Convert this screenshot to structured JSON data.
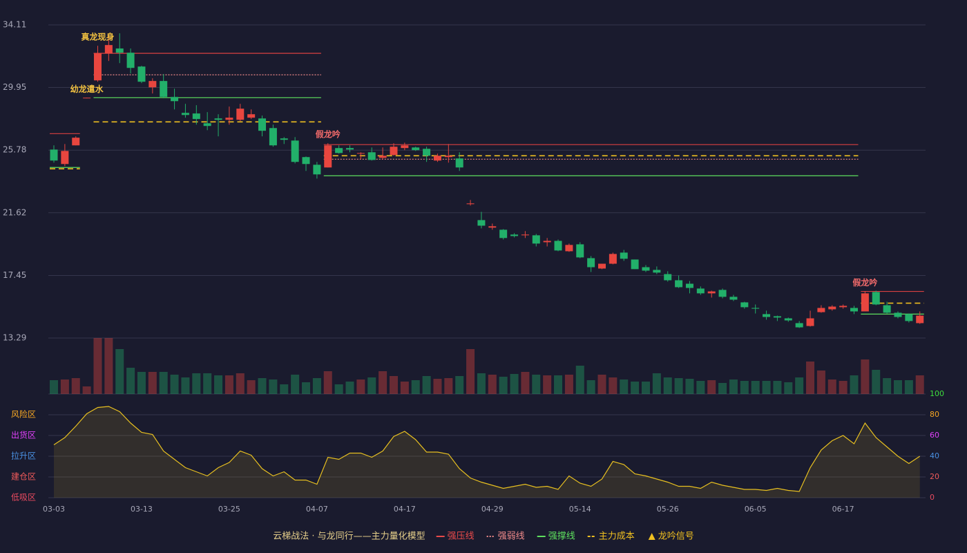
{
  "chart_data": {
    "type": "candlestick",
    "categories": [
      "03-03",
      null,
      null,
      null,
      null,
      null,
      null,
      null,
      "03-13",
      null,
      null,
      null,
      null,
      null,
      null,
      null,
      "03-25",
      null,
      null,
      null,
      null,
      null,
      null,
      null,
      "04-07",
      null,
      null,
      null,
      null,
      null,
      null,
      null,
      "04-17",
      null,
      null,
      null,
      null,
      null,
      null,
      null,
      "04-29",
      null,
      null,
      null,
      null,
      null,
      null,
      null,
      "05-14",
      null,
      null,
      null,
      null,
      null,
      null,
      null,
      "05-26",
      null,
      null,
      null,
      null,
      null,
      null,
      null,
      "06-05",
      null,
      null,
      null,
      null,
      null,
      null,
      null,
      "06-17",
      null,
      null,
      null,
      null,
      null,
      null,
      null
    ],
    "open": [
      25.82,
      24.86,
      26.1,
      29.23,
      30.42,
      32.22,
      32.54,
      32.26,
      31.34,
      29.96,
      30.38,
      29.32,
      28.26,
      28.22,
      27.57,
      27.89,
      27.8,
      27.8,
      27.94,
      27.89,
      27.25,
      26.56,
      26.42,
      25.32,
      24.81,
      24.63,
      25.92,
      25.92,
      25.55,
      25.64,
      25.27,
      25.46,
      25.92,
      25.96,
      25.87,
      25.09,
      25.32,
      25.23,
      22.19,
      21.13,
      20.63,
      20.49,
      20.17,
      20.12,
      20.12,
      19.66,
      19.75,
      19.06,
      19.52,
      18.6,
      17.91,
      18.23,
      18.97,
      18.51,
      18.0,
      17.82,
      17.54,
      17.13,
      16.9,
      16.58,
      16.26,
      16.49,
      16.03,
      15.66,
      15.29,
      14.88,
      14.74,
      14.6,
      14.28,
      14.09,
      15.01,
      15.2,
      15.34,
      15.29,
      15.06,
      16.35,
      15.47,
      14.97,
      14.88,
      14.28
    ],
    "high": [
      26.1,
      26.19,
      26.7,
      29.27,
      32.72,
      33.46,
      33.55,
      32.54,
      31.39,
      30.56,
      30.84,
      29.87,
      28.86,
      28.77,
      28.31,
      28.17,
      28.68,
      28.86,
      28.49,
      28.08,
      27.48,
      26.65,
      26.65,
      25.36,
      25.0,
      26.24,
      26.1,
      26.1,
      25.64,
      25.96,
      25.96,
      26.24,
      26.28,
      26.01,
      26.01,
      25.55,
      26.19,
      25.64,
      22.47,
      21.68,
      20.9,
      20.53,
      20.26,
      20.4,
      20.21,
      19.94,
      19.84,
      19.57,
      19.66,
      18.74,
      18.23,
      18.97,
      19.15,
      18.51,
      18.14,
      18.05,
      17.73,
      17.45,
      17.08,
      16.72,
      16.44,
      16.58,
      16.16,
      15.7,
      15.52,
      15.11,
      14.78,
      14.65,
      14.42,
      15.11,
      15.47,
      15.47,
      15.52,
      15.43,
      16.39,
      16.44,
      15.7,
      15.06,
      14.92,
      15.06
    ],
    "low": [
      24.95,
      24.72,
      26.1,
      29.23,
      30.33,
      31.71,
      31.57,
      30.88,
      30.24,
      29.55,
      29.23,
      28.49,
      27.94,
      27.48,
      27.11,
      26.7,
      27.48,
      27.71,
      27.85,
      26.7,
      26.01,
      26.19,
      24.9,
      24.4,
      23.89,
      24.63,
      25.55,
      25.64,
      25.18,
      25.09,
      25.18,
      25.41,
      25.78,
      25.73,
      25.0,
      25.0,
      24.95,
      24.4,
      22.1,
      20.58,
      20.49,
      19.84,
      19.98,
      19.94,
      19.38,
      19.38,
      19.06,
      19.02,
      18.6,
      17.68,
      17.87,
      18.19,
      18.42,
      17.87,
      17.68,
      17.54,
      17.04,
      16.62,
      16.26,
      16.16,
      15.98,
      15.93,
      15.75,
      15.24,
      14.92,
      14.51,
      14.42,
      14.37,
      13.96,
      14.05,
      14.97,
      15.11,
      15.24,
      14.88,
      15.06,
      15.47,
      14.92,
      14.6,
      14.32,
      14.23
    ],
    "close": [
      25.09,
      25.73,
      26.61,
      29.27,
      32.22,
      32.77,
      32.26,
      31.25,
      30.33,
      30.38,
      29.32,
      29.04,
      28.12,
      27.85,
      27.39,
      27.8,
      27.94,
      28.54,
      28.17,
      27.07,
      26.1,
      26.47,
      25.0,
      24.86,
      24.17,
      26.1,
      25.59,
      25.82,
      25.59,
      25.13,
      25.41,
      26.01,
      26.1,
      25.78,
      25.41,
      25.41,
      25.41,
      24.63,
      22.24,
      20.76,
      20.72,
      19.94,
      20.07,
      20.17,
      19.57,
      19.75,
      19.11,
      19.48,
      18.65,
      18.0,
      18.23,
      18.88,
      18.56,
      17.87,
      17.77,
      17.64,
      17.13,
      16.67,
      16.62,
      16.26,
      16.39,
      16.03,
      15.84,
      15.34,
      15.24,
      14.69,
      14.65,
      14.46,
      14.0,
      14.6,
      15.29,
      15.38,
      15.43,
      15.06,
      16.26,
      15.52,
      14.97,
      14.69,
      14.42,
      14.78
    ],
    "up_color": "#e8463f",
    "down_color": "#22b06a",
    "volume": [
      20,
      21,
      23,
      11,
      81,
      81,
      65,
      38,
      32,
      32,
      32,
      28,
      24,
      30,
      30,
      27,
      27,
      30,
      20,
      23,
      21,
      14,
      28,
      17,
      23,
      33,
      14,
      18,
      21,
      24,
      33,
      26,
      18,
      20,
      26,
      22,
      23,
      26,
      65,
      30,
      28,
      25,
      29,
      32,
      28,
      27,
      27,
      28,
      41,
      20,
      28,
      24,
      21,
      18,
      18,
      30,
      24,
      23,
      22,
      19,
      20,
      16,
      21,
      19,
      19,
      19,
      19,
      17,
      24,
      47,
      34,
      21,
      19,
      27,
      50,
      35,
      23,
      20,
      20,
      27
    ],
    "ylim": [
      13.29,
      34.11
    ],
    "yticks": [
      34.11,
      29.95,
      25.78,
      21.62,
      17.45,
      13.29
    ],
    "levels": [
      {
        "from": 0,
        "to": 2,
        "lines": [
          {
            "value": 26.88,
            "color": "#d94040",
            "style": "solid"
          },
          {
            "value": 24.63,
            "color": "#5ee05e",
            "style": "solid"
          },
          {
            "value": 24.54,
            "color": "#f0c020",
            "style": "dashed"
          }
        ]
      },
      {
        "from": 4,
        "to": 24,
        "lines": [
          {
            "value": 32.22,
            "color": "#d94040",
            "style": "solid"
          },
          {
            "value": 30.79,
            "color": "#f08a8a",
            "style": "dotted"
          },
          {
            "value": 29.27,
            "color": "#5ee05e",
            "style": "solid"
          },
          {
            "value": 27.66,
            "color": "#f0c020",
            "style": "dashed"
          }
        ]
      },
      {
        "from": 25,
        "to": 73,
        "lines": [
          {
            "value": 26.15,
            "color": "#d94040",
            "style": "solid"
          },
          {
            "value": 25.41,
            "color": "#f0c020",
            "style": "dashed"
          },
          {
            "value": 25.18,
            "color": "#f08a8a",
            "style": "dotted"
          },
          {
            "value": 24.08,
            "color": "#5ee05e",
            "style": "solid"
          }
        ]
      },
      {
        "from": 74,
        "to": 79,
        "lines": [
          {
            "value": 16.39,
            "color": "#d94040",
            "style": "solid"
          },
          {
            "value": 15.61,
            "color": "#f0c020",
            "style": "dashed"
          },
          {
            "value": 14.88,
            "color": "#5ee05e",
            "style": "solid"
          }
        ]
      }
    ],
    "annotations": [
      {
        "text": "真龙现身",
        "index": 4,
        "color": "#f0c040"
      },
      {
        "text": "幼龙遣水",
        "index": 3,
        "color": "#f0c040"
      },
      {
        "text": "假龙吟",
        "index": 25,
        "color": "#f06a6a"
      },
      {
        "text": "假龙吟",
        "index": 74,
        "color": "#f06a6a"
      }
    ],
    "oscillator": {
      "type": "area",
      "color": "#e8c020",
      "values": [
        51,
        58,
        69,
        81,
        87,
        88,
        83,
        72,
        63,
        61,
        45,
        37,
        29,
        25,
        21,
        29,
        34,
        45,
        41,
        28,
        21,
        25,
        17,
        17,
        13,
        39,
        37,
        43,
        43,
        39,
        45,
        59,
        64,
        56,
        44,
        44,
        42,
        28,
        19,
        15,
        12,
        9,
        11,
        13,
        10,
        11,
        8,
        21,
        14,
        11,
        18,
        35,
        32,
        23,
        21,
        18,
        15,
        11,
        11,
        9,
        15,
        12,
        10,
        8,
        8,
        7,
        9,
        7,
        6,
        29,
        46,
        55,
        60,
        52,
        72,
        58,
        49,
        40,
        33,
        40
      ],
      "ylim": [
        0,
        100
      ],
      "yticks": [
        0,
        20,
        40,
        60,
        80,
        100
      ],
      "ytick_colors": [
        "#e84a5f",
        "#f05a5a",
        "#4a90e2",
        "#e040fb",
        "#f5a623",
        "#3ddc3d"
      ],
      "zones": [
        {
          "value": 80,
          "label": "风险区",
          "color": "#f5a623"
        },
        {
          "value": 60,
          "label": "出货区",
          "color": "#e040fb"
        },
        {
          "value": 40,
          "label": "拉升区",
          "color": "#4a90e2"
        },
        {
          "value": 20,
          "label": "建仓区",
          "color": "#f05a5a"
        },
        {
          "value": 0,
          "label": "低吸区",
          "color": "#e84a5f"
        }
      ]
    },
    "legend": {
      "title": "云梯战法 · 与龙同行——主力量化模型",
      "title_color": "#e6cf8a",
      "series": [
        {
          "name": "强压线",
          "color": "#e84a4a",
          "style": "solid"
        },
        {
          "name": "强弱线",
          "color": "#f08a8a",
          "style": "dotted"
        },
        {
          "name": "强撑线",
          "color": "#5ee05e",
          "style": "solid"
        },
        {
          "name": "主力成本",
          "color": "#f0c020",
          "style": "dashed"
        },
        {
          "name": "龙吟信号",
          "color": "#f0c020",
          "style": "triangle"
        }
      ]
    }
  }
}
